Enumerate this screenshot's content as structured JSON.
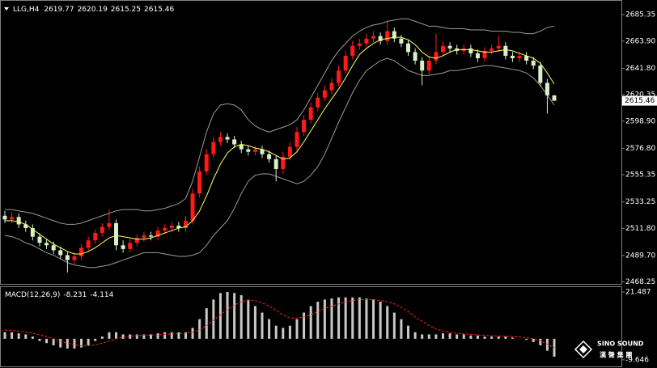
{
  "chart_data": [
    {
      "type": "candlestick",
      "title": "LLG,H4",
      "open": [
        2522,
        2519,
        2521,
        2515,
        2512,
        2505,
        2500,
        2498,
        2494,
        2490,
        2486,
        2489,
        2496,
        2502,
        2508,
        2513,
        2516,
        2498,
        2495,
        2500,
        2504,
        2506,
        2505,
        2510,
        2512,
        2514,
        2512,
        2518,
        2540,
        2558,
        2572,
        2582,
        2586,
        2584,
        2580,
        2576,
        2574,
        2576,
        2572,
        2568,
        2560,
        2570,
        2578,
        2590,
        2600,
        2610,
        2618,
        2624,
        2630,
        2640,
        2652,
        2660,
        2662,
        2666,
        2668,
        2664,
        2672,
        2666,
        2662,
        2655,
        2648,
        2640,
        2648,
        2655,
        2660,
        2658,
        2656,
        2658,
        2654,
        2650,
        2656,
        2658,
        2660,
        2652,
        2650,
        2652,
        2648,
        2644,
        2630,
        2619.77
      ],
      "high": [
        2526,
        2525,
        2524,
        2518,
        2515,
        2508,
        2503,
        2501,
        2497,
        2493,
        2492,
        2499,
        2505,
        2511,
        2516,
        2527,
        2519,
        2502,
        2503,
        2507,
        2509,
        2509,
        2513,
        2515,
        2517,
        2517,
        2522,
        2544,
        2562,
        2576,
        2586,
        2590,
        2589,
        2587,
        2583,
        2579,
        2579,
        2579,
        2575,
        2571,
        2574,
        2582,
        2594,
        2604,
        2614,
        2622,
        2628,
        2634,
        2644,
        2656,
        2664,
        2666,
        2670,
        2672,
        2671,
        2680,
        2675,
        2669,
        2665,
        2658,
        2651,
        2652,
        2670,
        2664,
        2663,
        2661,
        2661,
        2661,
        2657,
        2659,
        2661,
        2668,
        2663,
        2655,
        2655,
        2655,
        2651,
        2647,
        2633,
        2620.19
      ],
      "low": [
        2516,
        2516,
        2512,
        2509,
        2502,
        2497,
        2495,
        2491,
        2487,
        2476,
        2483,
        2486,
        2493,
        2499,
        2505,
        2510,
        2494,
        2492,
        2492,
        2497,
        2501,
        2502,
        2502,
        2507,
        2509,
        2509,
        2509,
        2515,
        2537,
        2555,
        2569,
        2579,
        2581,
        2577,
        2573,
        2571,
        2571,
        2569,
        2565,
        2550,
        2556,
        2567,
        2575,
        2587,
        2597,
        2607,
        2615,
        2621,
        2627,
        2637,
        2649,
        2657,
        2659,
        2663,
        2661,
        2661,
        2663,
        2659,
        2652,
        2645,
        2628,
        2637,
        2645,
        2652,
        2655,
        2653,
        2653,
        2651,
        2647,
        2647,
        2653,
        2655,
        2649,
        2647,
        2647,
        2645,
        2641,
        2627,
        2605,
        2615.25
      ],
      "close": [
        2519,
        2521,
        2515,
        2512,
        2505,
        2500,
        2498,
        2494,
        2490,
        2486,
        2489,
        2496,
        2502,
        2508,
        2513,
        2516,
        2498,
        2495,
        2500,
        2504,
        2506,
        2505,
        2510,
        2512,
        2514,
        2512,
        2518,
        2540,
        2558,
        2572,
        2582,
        2586,
        2584,
        2580,
        2576,
        2574,
        2576,
        2572,
        2568,
        2560,
        2570,
        2578,
        2590,
        2600,
        2610,
        2618,
        2624,
        2630,
        2640,
        2652,
        2660,
        2662,
        2666,
        2668,
        2664,
        2672,
        2666,
        2662,
        2655,
        2648,
        2640,
        2648,
        2655,
        2660,
        2658,
        2656,
        2658,
        2654,
        2650,
        2656,
        2658,
        2660,
        2652,
        2650,
        2652,
        2648,
        2644,
        2630,
        2619.77,
        2615.46
      ],
      "up_color": "#ff1a1a",
      "down_color": "#d8f0c8",
      "bands": {
        "color": "#9a9a9a",
        "upper": [
          2527,
          2527,
          2526,
          2525,
          2524,
          2522,
          2520,
          2518,
          2516,
          2515,
          2515,
          2516,
          2518,
          2520,
          2522,
          2524,
          2526,
          2527,
          2527,
          2527,
          2526,
          2526,
          2527,
          2528,
          2530,
          2532,
          2536,
          2550,
          2570,
          2590,
          2605,
          2612,
          2613,
          2612,
          2608,
          2600,
          2595,
          2592,
          2590,
          2592,
          2594,
          2596,
          2600,
          2608,
          2618,
          2628,
          2638,
          2648,
          2656,
          2662,
          2668,
          2672,
          2675,
          2677,
          2678,
          2680,
          2681,
          2682,
          2682,
          2680,
          2678,
          2676,
          2676,
          2675,
          2674,
          2674,
          2674,
          2673,
          2673,
          2673,
          2672,
          2672,
          2672,
          2671,
          2671,
          2670,
          2670,
          2672,
          2675,
          2676
        ],
        "lower": [
          2506,
          2505,
          2503,
          2500,
          2498,
          2495,
          2492,
          2490,
          2487,
          2484,
          2482,
          2481,
          2480,
          2480,
          2481,
          2482,
          2484,
          2486,
          2488,
          2490,
          2492,
          2492,
          2492,
          2491,
          2490,
          2489,
          2489,
          2490,
          2492,
          2498,
          2506,
          2512,
          2518,
          2528,
          2540,
          2550,
          2555,
          2556,
          2556,
          2554,
          2552,
          2550,
          2548,
          2550,
          2555,
          2562,
          2572,
          2585,
          2598,
          2610,
          2622,
          2632,
          2640,
          2644,
          2648,
          2650,
          2648,
          2644,
          2640,
          2638,
          2636,
          2636,
          2637,
          2638,
          2640,
          2640,
          2641,
          2642,
          2643,
          2644,
          2644,
          2643,
          2642,
          2641,
          2640,
          2638,
          2634,
          2628,
          2620,
          2612
        ]
      },
      "ma": {
        "color": "#ffff66",
        "values": [
          2518,
          2518,
          2517,
          2515,
          2511,
          2507,
          2503,
          2499,
          2496,
          2493,
          2491,
          2491,
          2493,
          2496,
          2500,
          2504,
          2506,
          2505,
          2504,
          2503,
          2503,
          2504,
          2506,
          2508,
          2510,
          2512,
          2513,
          2518,
          2526,
          2538,
          2552,
          2564,
          2573,
          2578,
          2580,
          2579,
          2577,
          2576,
          2574,
          2571,
          2568,
          2569,
          2574,
          2582,
          2591,
          2600,
          2609,
          2617,
          2625,
          2634,
          2644,
          2653,
          2658,
          2662,
          2665,
          2666,
          2667,
          2667,
          2665,
          2661,
          2655,
          2651,
          2650,
          2652,
          2655,
          2657,
          2657,
          2657,
          2656,
          2655,
          2655,
          2656,
          2657,
          2656,
          2654,
          2652,
          2650,
          2646,
          2638,
          2629
        ]
      },
      "ylim": [
        2466,
        2696
      ],
      "yticks": [
        2685.35,
        {
          "value": 2663.9,
          "label": "2663.90"
        },
        {
          "value": 2641.8,
          "label": "2641.80"
        },
        2620.35,
        {
          "value": 2598.9,
          "label": "2598.90"
        },
        {
          "value": 2576.8,
          "label": "2576.80"
        },
        2555.35,
        2533.25,
        {
          "value": 2511.8,
          "label": "2511.80"
        },
        {
          "value": 2489.7,
          "label": "2489.70"
        },
        2468.25
      ]
    },
    {
      "type": "macd",
      "title": "MACD(12,26,9)",
      "histogram": {
        "color": "#c8c8c8",
        "values": [
          3,
          3,
          2.5,
          2,
          1,
          -1,
          -2,
          -3,
          -4,
          -4.5,
          -4.5,
          -4,
          -3,
          -1,
          1,
          3,
          3,
          2,
          2,
          2,
          2,
          2,
          2.5,
          3,
          3,
          3,
          3,
          5,
          9,
          14,
          18,
          21,
          21.5,
          21,
          20,
          18,
          15,
          12,
          9,
          6,
          5,
          6,
          9,
          12,
          15,
          17,
          18,
          18.5,
          19,
          19,
          19,
          19,
          18.5,
          18,
          17,
          15,
          12,
          9,
          6,
          3,
          2,
          2,
          2,
          2.5,
          2.5,
          2,
          2,
          1.5,
          1.5,
          1,
          1,
          1,
          1,
          0.5,
          0,
          -0.5,
          -1.5,
          -3,
          -5.5,
          -8.231
        ]
      },
      "signal": {
        "color": "#ff2020",
        "values": [
          4,
          3.8,
          3.5,
          3,
          2.5,
          1.8,
          1,
          0,
          -1,
          -2,
          -2.8,
          -3.2,
          -3.2,
          -2.8,
          -2,
          -1,
          0,
          0.8,
          1.2,
          1.5,
          1.6,
          1.7,
          1.8,
          2,
          2.2,
          2.4,
          2.6,
          3,
          4,
          6,
          8.5,
          11,
          13.5,
          15.5,
          17,
          17.8,
          17.5,
          16.5,
          15,
          13,
          11,
          9.5,
          9.5,
          10,
          11,
          12.5,
          14,
          15,
          16,
          17,
          17.5,
          18,
          18,
          18,
          17.5,
          17,
          16,
          14.5,
          12.5,
          10,
          8,
          6,
          4.5,
          3.5,
          3,
          2.5,
          2.2,
          2,
          1.8,
          1.6,
          1.4,
          1.3,
          1.2,
          1,
          0.8,
          0.5,
          0,
          -1,
          -2.5,
          -4.114
        ]
      },
      "ylim": [
        -12.3,
        23.7
      ],
      "yticks": [
        21.487,
        -9.646
      ]
    }
  ],
  "watermark": {
    "name": "SINO SOUND",
    "subtitle": "漢 聲 集 團"
  }
}
